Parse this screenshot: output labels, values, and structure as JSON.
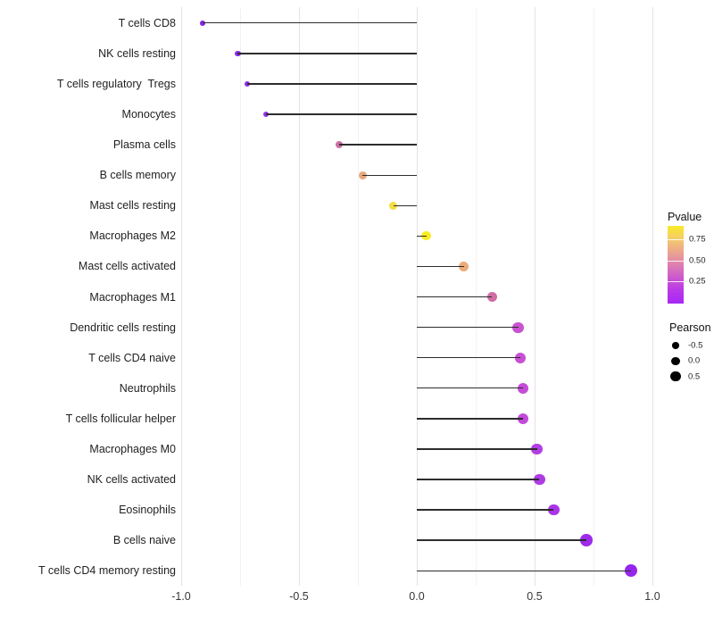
{
  "chart_data": {
    "type": "scatter",
    "variant": "lollipop",
    "title": "",
    "xlabel": "",
    "ylabel": "",
    "x_tick_labels": [
      "-1.0",
      "-0.5",
      "0.0",
      "0.5",
      "1.0"
    ],
    "x_tick_values": [
      -1.0,
      -0.5,
      0.0,
      0.5,
      1.0
    ],
    "xlim": [
      -1.13,
      1.15
    ],
    "grid": "vertical-only, major 0.5 + minor 0.25",
    "legend_position": "right",
    "baseline": 0.0,
    "points": [
      {
        "label": "T cells CD8",
        "pearson": -0.91,
        "color": "#8429E4"
      },
      {
        "label": "NK cells resting",
        "pearson": -0.76,
        "color": "#8C2BE6"
      },
      {
        "label": "T cells regulatory  Tregs",
        "pearson": -0.72,
        "color": "#8F2CE5"
      },
      {
        "label": "Monocytes",
        "pearson": -0.64,
        "color": "#9732E6"
      },
      {
        "label": "Plasma cells",
        "pearson": -0.33,
        "color": "#CE6FA6"
      },
      {
        "label": "B cells memory",
        "pearson": -0.23,
        "color": "#E8A87E"
      },
      {
        "label": "Mast cells resting",
        "pearson": -0.1,
        "color": "#F2DE3E"
      },
      {
        "label": "Macrophages M2",
        "pearson": 0.04,
        "color": "#F8ED21"
      },
      {
        "label": "Mast cells activated",
        "pearson": 0.2,
        "color": "#EBAB79"
      },
      {
        "label": "Macrophages M1",
        "pearson": 0.32,
        "color": "#D06CA4"
      },
      {
        "label": "Dendritic cells resting",
        "pearson": 0.43,
        "color": "#C853CF"
      },
      {
        "label": "T cells CD4 naive",
        "pearson": 0.44,
        "color": "#C750D3"
      },
      {
        "label": "Neutrophils",
        "pearson": 0.45,
        "color": "#C44DD7"
      },
      {
        "label": "T cells follicular helper",
        "pearson": 0.45,
        "color": "#C24AD9"
      },
      {
        "label": "Macrophages M0",
        "pearson": 0.51,
        "color": "#B23EE2"
      },
      {
        "label": "NK cells activated",
        "pearson": 0.52,
        "color": "#AF3BE5"
      },
      {
        "label": "Eosinophils",
        "pearson": 0.58,
        "color": "#AB34E9"
      },
      {
        "label": "B cells naive",
        "pearson": 0.72,
        "color": "#9D2BEC"
      },
      {
        "label": "T cells CD4 memory resting",
        "pearson": 0.91,
        "color": "#9626EE"
      }
    ]
  },
  "legend": {
    "pvalue": {
      "title": "Pvalue",
      "tick_labels": [
        "0.75",
        "0.50",
        "0.25"
      ],
      "gradient_top_to_bottom": [
        "#F9EA28",
        "#F4CB6A",
        "#EBA58E",
        "#DE7FB0",
        "#CC58CE",
        "#B838E8",
        "#A727F5"
      ]
    },
    "pearson": {
      "title": "Pearson",
      "items": [
        {
          "label": "-0.5"
        },
        {
          "label": "0.0"
        },
        {
          "label": "0.5"
        }
      ]
    }
  },
  "colors": {
    "stem": "#2d2d2d",
    "grid_major": "#e3e3e3",
    "grid_minor": "#f2f2f2",
    "background": "#ffffff"
  }
}
